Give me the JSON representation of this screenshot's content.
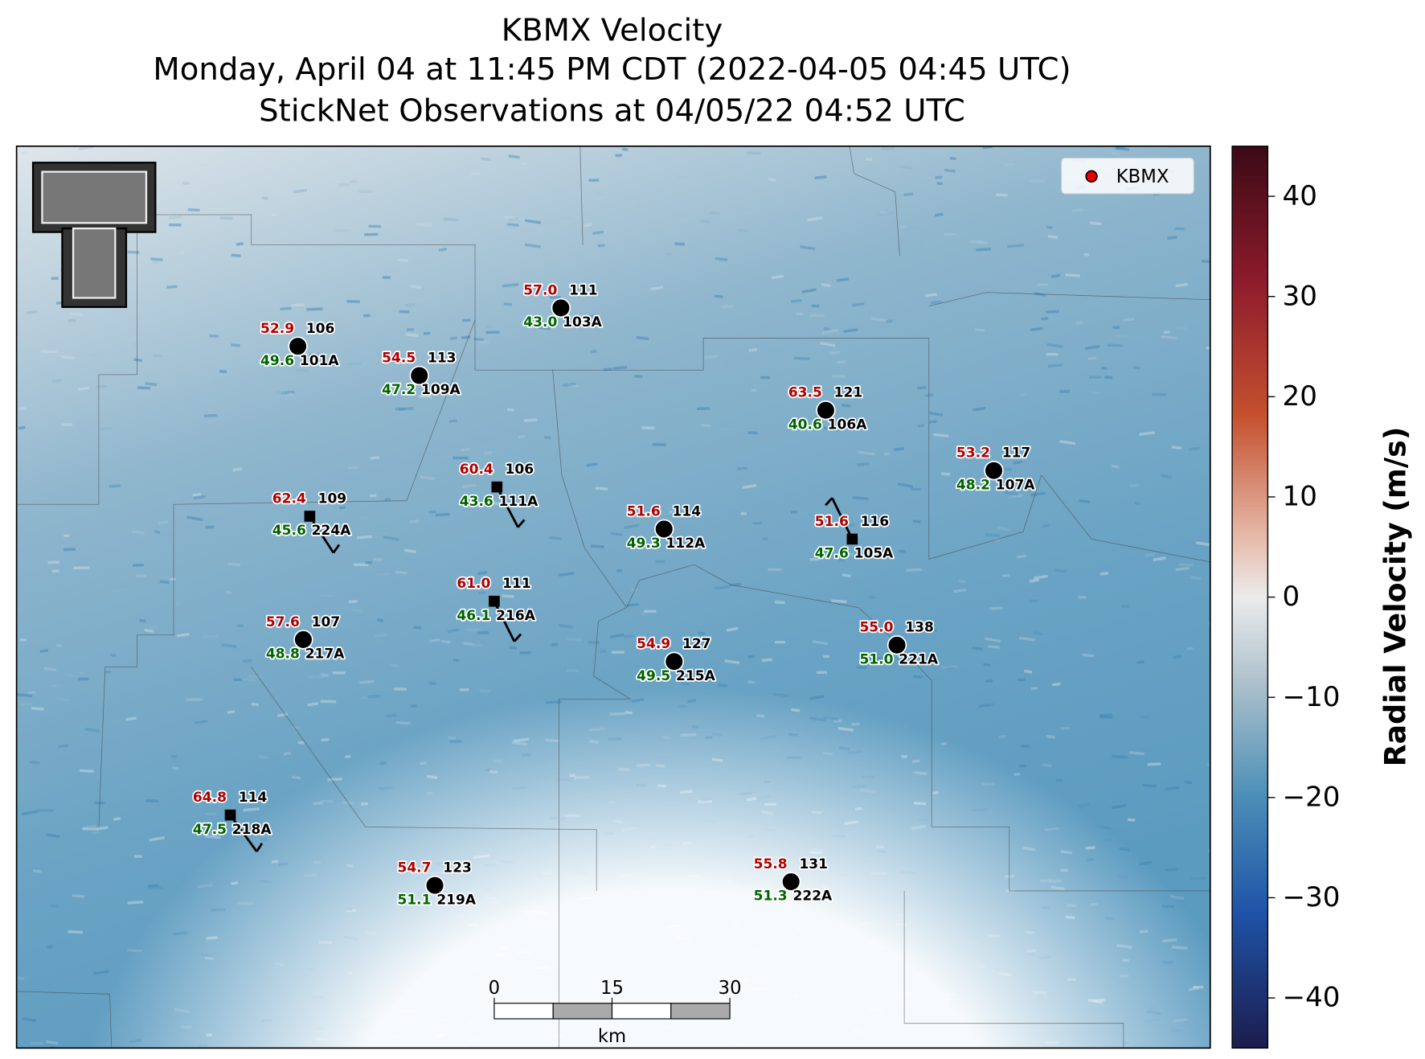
{
  "title": {
    "line1": "KBMX Velocity",
    "line2": "Monday, April 04 at 11:45 PM CDT (2022-04-05 04:45 UTC)",
    "line3": "StickNet Observations at 04/05/22 04:52 UTC"
  },
  "legend": {
    "label": "KBMX"
  },
  "stations": [
    {
      "temp": "52.9",
      "dew": "49.6",
      "value": "106",
      "id": "101A",
      "marker": "circle"
    },
    {
      "temp": "54.5",
      "dew": "47.2",
      "value": "113",
      "id": "109A",
      "marker": "circle"
    },
    {
      "temp": "57.0",
      "dew": "43.0",
      "value": "111",
      "id": "103A",
      "marker": "circle"
    },
    {
      "temp": "63.5",
      "dew": "40.6",
      "value": "121",
      "id": "106A",
      "marker": "circle"
    },
    {
      "temp": "53.2",
      "dew": "48.2",
      "value": "117",
      "id": "107A",
      "marker": "circle"
    },
    {
      "temp": "62.4",
      "dew": "45.6",
      "value": "109",
      "id": "224A",
      "marker": "square"
    },
    {
      "temp": "60.4",
      "dew": "43.6",
      "value": "106",
      "id": "111A",
      "marker": "square"
    },
    {
      "temp": "51.6",
      "dew": "49.3",
      "value": "114",
      "id": "112A",
      "marker": "circle"
    },
    {
      "temp": "51.6",
      "dew": "47.6",
      "value": "116",
      "id": "105A",
      "marker": "square"
    },
    {
      "temp": "61.0",
      "dew": "46.1",
      "value": "111",
      "id": "216A",
      "marker": "square"
    },
    {
      "temp": "57.6",
      "dew": "48.8",
      "value": "107",
      "id": "217A",
      "marker": "circle"
    },
    {
      "temp": "54.9",
      "dew": "49.5",
      "value": "127",
      "id": "215A",
      "marker": "circle"
    },
    {
      "temp": "55.0",
      "dew": "51.0",
      "value": "138",
      "id": "221A",
      "marker": "circle"
    },
    {
      "temp": "64.8",
      "dew": "47.5",
      "value": "114",
      "id": "218A",
      "marker": "square"
    },
    {
      "temp": "54.7",
      "dew": "51.1",
      "value": "123",
      "id": "219A",
      "marker": "circle"
    },
    {
      "temp": "55.8",
      "dew": "51.3",
      "value": "131",
      "id": "222A",
      "marker": "circle"
    }
  ],
  "scale_bar": {
    "ticks": [
      0,
      15,
      30
    ],
    "unit": "km"
  },
  "colorbar": {
    "label": "Radial Velocity (m/s)",
    "lim": [
      -45,
      45
    ],
    "ticks": [
      {
        "value": -40,
        "label": "−40"
      },
      {
        "value": -30,
        "label": "−30"
      },
      {
        "value": -20,
        "label": "−20"
      },
      {
        "value": -10,
        "label": "−10"
      },
      0,
      10,
      20,
      30,
      40
    ]
  }
}
